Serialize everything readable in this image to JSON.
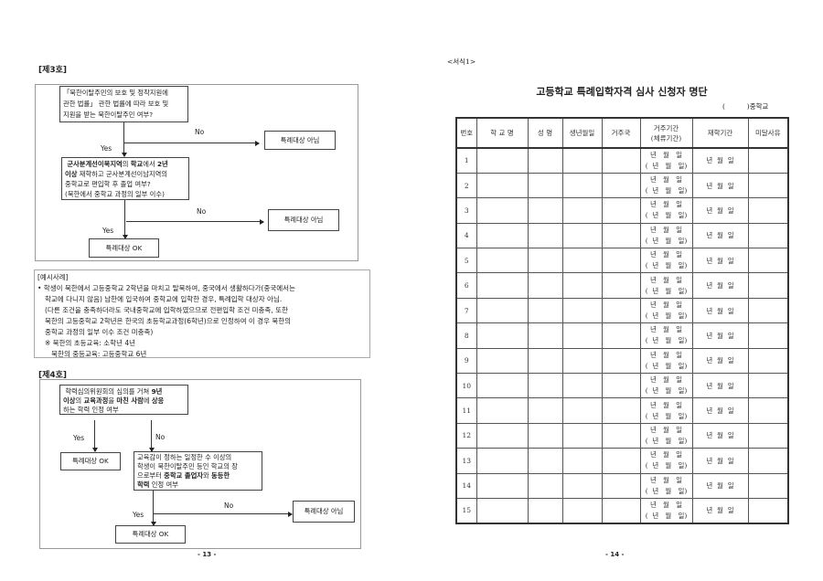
{
  "left_page": {
    "section3": {
      "title": "[제3호]",
      "q1": "「북한이탈주민의 보호 및 정착지원에 관한 법률」 관한 법률에 따라 보호 및 지원을 받는 북한이탈주민 여부?",
      "q1_lines": [
        "「북한이탈주민의 보호 및 정착지원에",
        "관한 법률」 관한 법률에 따라 보호 및",
        "지원을 받는 북한이탈주민 여부?"
      ],
      "q2_parts": {
        "b1": "군사분계선이북지역",
        "t1": "의 ",
        "b2": "학교",
        "t2": "에서 ",
        "b3": "2년",
        "b4": "이상",
        "t3": " 재학하고 군사분계선이남지역의",
        "l3": "중학교로 편입학 후 졸업 여부?",
        "l4": "(북한에서 중학교 과정의 일부 이수)"
      },
      "no1": "No",
      "yes1": "Yes",
      "no2": "No",
      "yes2": "Yes",
      "result_no1": "특례대상 아님",
      "result_no2": "특례대상 아님",
      "result_ok": "특례대상 OK"
    },
    "example": {
      "heading": "[예시사례]",
      "lines": [
        "• 학생이 북한에서 고등중학교 2학년을 마치고 탈북하여, 중국에서 생활하다가(중국에서는",
        "학교에 다니지 않음) 남한에 입국하여 중학교에 입학한 경우, 특례입학 대상자 아님.",
        "(다른 조건을 충족하더라도 국내중학교에 입학하였으므로 전편입학 조건 미충족, 또한",
        "북한의 고등중학교 2학년은 한국의 초등학교과정(6학년)으로 인정하여 이 경우 북한의",
        "중학교 과정의 일부 이수 조건 미충족)",
        "※ 북한의 초등교육: 소학년 4년",
        "   북한의 중등교육: 고등중학교 6년"
      ]
    },
    "section4": {
      "title": "[제4호]",
      "q1_parts": {
        "t1": "학력심의위원회의 심의를 거쳐 ",
        "b1": "9년",
        "b2": "이상",
        "t2": "의 ",
        "b3": "교육과정",
        "t3": "을 ",
        "b4": "마친 사람",
        "t4": "에 ",
        "b5": "상응",
        "l3": "하는 학력 인정 여부"
      },
      "q2_parts": {
        "l1": "교육감이 정하는 일정한 수 이상의",
        "l2": "학생이 북한이탈주민 등인 학교의 장",
        "t1": "으로부터 ",
        "b1": "중학교 졸업자",
        "t2": "와 ",
        "b2": "동등한",
        "b3": "학력",
        "t3": " 인정 여부"
      },
      "yes1": "Yes",
      "no1": "No",
      "yes2": "Yes",
      "no2": "No",
      "result_ok1": "특례대상 OK",
      "result_ok2": "특례대상 OK",
      "result_no": "특례대상 아님"
    },
    "page_number": "- 13 -"
  },
  "right_page": {
    "form_label": "<서식1>",
    "title": "고등학교 특례입학자격 심사 신청자 명단",
    "school_suffix": "(          )중학교",
    "columns": [
      "번호",
      "학 교 명",
      "성 명",
      "생년월일",
      "거주국",
      "거주기간\n(체류기간)",
      "재학기간",
      "미달사유"
    ],
    "col_period_1": "거주기간",
    "col_period_2": "(체류기간)",
    "date_line1": "년   월   일",
    "date_line2": "(  년   월   일)",
    "study_date": "년  월  일",
    "rows": [
      "1",
      "2",
      "3",
      "4",
      "5",
      "6",
      "7",
      "8",
      "9",
      "10",
      "11",
      "12",
      "13",
      "14",
      "15"
    ],
    "page_number": "- 14 -"
  }
}
